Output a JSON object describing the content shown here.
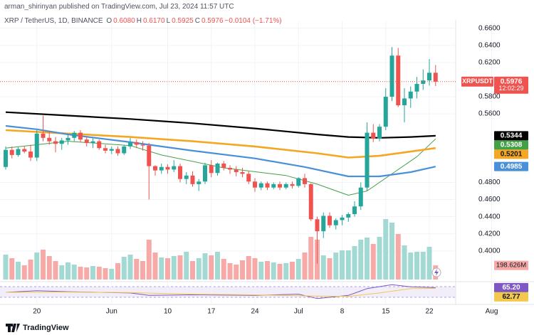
{
  "chart_data": {
    "type": "candlestick",
    "header": "arman_shirinyan published on TradingView.com, Jul 23, 2024 11:57 UTC",
    "legend": {
      "symbol": "XRP / TetherUS, 1D, BINANCE",
      "items": [
        {
          "key": "O",
          "value": "0.6080"
        },
        {
          "key": "H",
          "value": "0.6170"
        },
        {
          "key": "L",
          "value": "0.5925"
        },
        {
          "key": "C",
          "value": "0.5976"
        }
      ],
      "change": "−0.0104 (−1.71%)"
    },
    "categories": [
      null,
      null,
      null,
      null,
      null,
      "20",
      null,
      null,
      null,
      null,
      null,
      null,
      null,
      null,
      null,
      null,
      null,
      "Jun",
      null,
      null,
      null,
      null,
      null,
      null,
      null,
      null,
      "10",
      null,
      null,
      null,
      null,
      null,
      null,
      "17",
      null,
      null,
      null,
      null,
      null,
      null,
      "24",
      null,
      null,
      null,
      null,
      null,
      null,
      "Jul",
      null,
      null,
      null,
      null,
      null,
      null,
      "8",
      null,
      null,
      null,
      null,
      null,
      null,
      "15",
      null,
      null,
      null,
      null,
      null,
      null,
      "22",
      null,
      null,
      null,
      null,
      null,
      null,
      null,
      null,
      null,
      "Aug"
    ],
    "open": [
      0.498,
      0.518,
      0.512,
      0.519,
      0.516,
      0.509,
      0.537,
      0.532,
      0.528,
      0.525,
      0.529,
      0.532,
      0.538,
      0.53,
      0.526,
      0.528,
      0.52,
      0.517,
      0.519,
      0.514,
      0.522,
      0.527,
      0.524,
      0.523,
      0.499,
      0.494,
      0.498,
      0.495,
      0.499,
      0.484,
      0.488,
      0.478,
      0.481,
      0.5,
      0.491,
      0.502,
      0.497,
      0.495,
      0.492,
      0.49,
      0.481,
      0.474,
      0.479,
      0.474,
      0.478,
      0.474,
      0.478,
      0.476,
      0.485,
      0.478,
      0.437,
      0.423,
      0.441,
      0.43,
      0.436,
      0.439,
      0.443,
      0.452,
      0.474,
      0.538,
      0.531,
      0.545,
      0.58,
      0.628,
      0.57,
      0.578,
      0.586,
      0.595,
      0.599,
      0.608,
      null,
      null,
      null,
      null,
      null,
      null,
      null,
      null,
      null
    ],
    "high": [
      0.522,
      0.522,
      0.521,
      0.522,
      0.524,
      0.541,
      0.558,
      0.54,
      0.533,
      0.532,
      0.536,
      0.54,
      0.541,
      0.534,
      0.532,
      0.53,
      0.524,
      0.522,
      0.522,
      0.524,
      0.532,
      0.53,
      0.528,
      0.526,
      0.5,
      0.502,
      0.501,
      0.506,
      0.502,
      0.492,
      0.493,
      0.484,
      0.503,
      0.506,
      0.503,
      0.505,
      0.5,
      0.499,
      0.497,
      0.493,
      0.485,
      0.481,
      0.481,
      0.48,
      0.481,
      0.48,
      0.481,
      0.486,
      0.49,
      0.479,
      0.44,
      0.445,
      0.445,
      0.438,
      0.442,
      0.445,
      0.458,
      0.48,
      0.55,
      0.548,
      0.548,
      0.59,
      0.638,
      0.637,
      0.59,
      0.592,
      0.603,
      0.612,
      0.624,
      0.617,
      null,
      null,
      null,
      null,
      null,
      null,
      null,
      null,
      null
    ],
    "low": [
      0.495,
      0.508,
      0.51,
      0.514,
      0.505,
      0.505,
      0.528,
      0.524,
      0.515,
      0.518,
      0.524,
      0.528,
      0.527,
      0.522,
      0.52,
      0.518,
      0.514,
      0.513,
      0.511,
      0.512,
      0.519,
      0.52,
      0.517,
      0.46,
      0.488,
      0.49,
      0.49,
      0.492,
      0.48,
      0.478,
      0.475,
      0.47,
      0.478,
      0.486,
      0.488,
      0.494,
      0.49,
      0.487,
      0.486,
      0.478,
      0.469,
      0.471,
      0.471,
      0.472,
      0.471,
      0.472,
      0.473,
      0.474,
      0.474,
      0.435,
      0.385,
      0.415,
      0.427,
      0.425,
      0.43,
      0.434,
      0.44,
      0.448,
      0.47,
      0.527,
      0.528,
      0.541,
      0.575,
      0.568,
      0.55,
      0.567,
      0.578,
      0.588,
      0.593,
      0.5925,
      null,
      null,
      null,
      null,
      null,
      null,
      null,
      null,
      null
    ],
    "close": [
      0.518,
      0.512,
      0.519,
      0.516,
      0.509,
      0.537,
      0.532,
      0.528,
      0.525,
      0.529,
      0.532,
      0.538,
      0.53,
      0.526,
      0.528,
      0.52,
      0.517,
      0.519,
      0.514,
      0.522,
      0.527,
      0.524,
      0.523,
      0.499,
      0.494,
      0.498,
      0.495,
      0.499,
      0.484,
      0.488,
      0.478,
      0.481,
      0.5,
      0.491,
      0.502,
      0.497,
      0.495,
      0.492,
      0.49,
      0.481,
      0.474,
      0.479,
      0.474,
      0.478,
      0.474,
      0.478,
      0.476,
      0.485,
      0.478,
      0.437,
      0.423,
      0.441,
      0.43,
      0.436,
      0.439,
      0.443,
      0.452,
      0.474,
      0.538,
      0.531,
      0.545,
      0.58,
      0.628,
      0.57,
      0.578,
      0.586,
      0.595,
      0.599,
      0.608,
      0.5976,
      null,
      null,
      null,
      null,
      null,
      null,
      null,
      null,
      null
    ],
    "volume": [
      350,
      300,
      250,
      200,
      280,
      380,
      420,
      330,
      260,
      200,
      240,
      210,
      180,
      170,
      190,
      180,
      160,
      150,
      230,
      320,
      350,
      290,
      260,
      560,
      380,
      310,
      300,
      330,
      340,
      390,
      260,
      300,
      370,
      340,
      390,
      290,
      230,
      210,
      270,
      330,
      300,
      250,
      260,
      240,
      220,
      230,
      250,
      290,
      380,
      600,
      560,
      340,
      300,
      380,
      410,
      410,
      470,
      560,
      590,
      500,
      600,
      850,
      800,
      640,
      480,
      380,
      390,
      390,
      460,
      198.626,
      null,
      null,
      null,
      null,
      null,
      null,
      null,
      null,
      null
    ],
    "volume_label": "198.626M",
    "volume_lim": [
      0,
      900
    ],
    "colors": {
      "up": "#26a69a",
      "down": "#ef5350",
      "volume_up": "#a3d9d3",
      "volume_down": "#f6a9a7"
    },
    "ylim": [
      0.365,
      0.668
    ],
    "yticks": [
      {
        "value": 0.66,
        "label": "0.6600"
      },
      {
        "value": 0.64,
        "label": "0.6400"
      },
      {
        "value": 0.62,
        "label": "0.6200"
      },
      {
        "value": 0.58,
        "label": "0.5800"
      },
      {
        "value": 0.56,
        "label": "0.5600"
      },
      {
        "value": 0.48,
        "label": "0.4800"
      },
      {
        "value": 0.46,
        "label": "0.4600"
      },
      {
        "value": 0.44,
        "label": "0.4400"
      },
      {
        "value": 0.42,
        "label": "0.4200"
      },
      {
        "value": 0.4,
        "label": "0.4000"
      }
    ],
    "grid": true,
    "last_price": {
      "name": "XRPUSDT",
      "label": "0.5976",
      "countdown": "12:02:29"
    },
    "overlays": [
      {
        "color": "#000000",
        "width": 2.2,
        "x": [
          0,
          10,
          20,
          30,
          40,
          50,
          55,
          60,
          65,
          69
        ],
        "values": [
          0.562,
          0.558,
          0.554,
          0.549,
          0.543,
          0.536,
          0.533,
          0.532,
          0.533,
          0.5344
        ],
        "label": "0.5344"
      },
      {
        "color": "#43a047",
        "width": 1,
        "x": [
          0,
          10,
          20,
          25,
          35,
          45,
          50,
          55,
          58,
          62,
          66,
          69
        ],
        "values": [
          0.52,
          0.528,
          0.523,
          0.512,
          0.497,
          0.488,
          0.478,
          0.465,
          0.47,
          0.49,
          0.51,
          0.5308
        ],
        "label": "0.5308"
      },
      {
        "color": "#f5a623",
        "width": 2.6,
        "x": [
          0,
          10,
          20,
          30,
          40,
          50,
          55,
          60,
          65,
          69
        ],
        "values": [
          0.541,
          0.537,
          0.533,
          0.528,
          0.522,
          0.514,
          0.509,
          0.511,
          0.516,
          0.5201
        ],
        "label": "0.5201"
      },
      {
        "color": "#4a90d9",
        "width": 2.2,
        "x": [
          0,
          5,
          10,
          20,
          30,
          40,
          48,
          55,
          60,
          65,
          69
        ],
        "values": [
          0.546,
          0.542,
          0.536,
          0.527,
          0.517,
          0.508,
          0.498,
          0.487,
          0.487,
          0.492,
          0.4985
        ],
        "label": "0.4985"
      }
    ],
    "rsi": {
      "ylim": [
        20,
        80
      ],
      "series": [
        {
          "color": "#7e57c2",
          "x": [
            0,
            5,
            10,
            20,
            23,
            30,
            40,
            47,
            50,
            55,
            58,
            62,
            65,
            69
          ],
          "values": [
            50,
            55,
            52,
            48,
            40,
            42,
            40,
            44,
            30,
            40,
            62,
            75,
            68,
            65.2
          ],
          "label": "65.20"
        },
        {
          "color": "#f2c94c",
          "x": [
            0,
            10,
            20,
            30,
            40,
            50,
            55,
            60,
            65,
            69
          ],
          "values": [
            50,
            51,
            49,
            44,
            42,
            38,
            37,
            48,
            62,
            62.77
          ],
          "label": "62.77"
        }
      ]
    },
    "footer": "TradingView"
  }
}
